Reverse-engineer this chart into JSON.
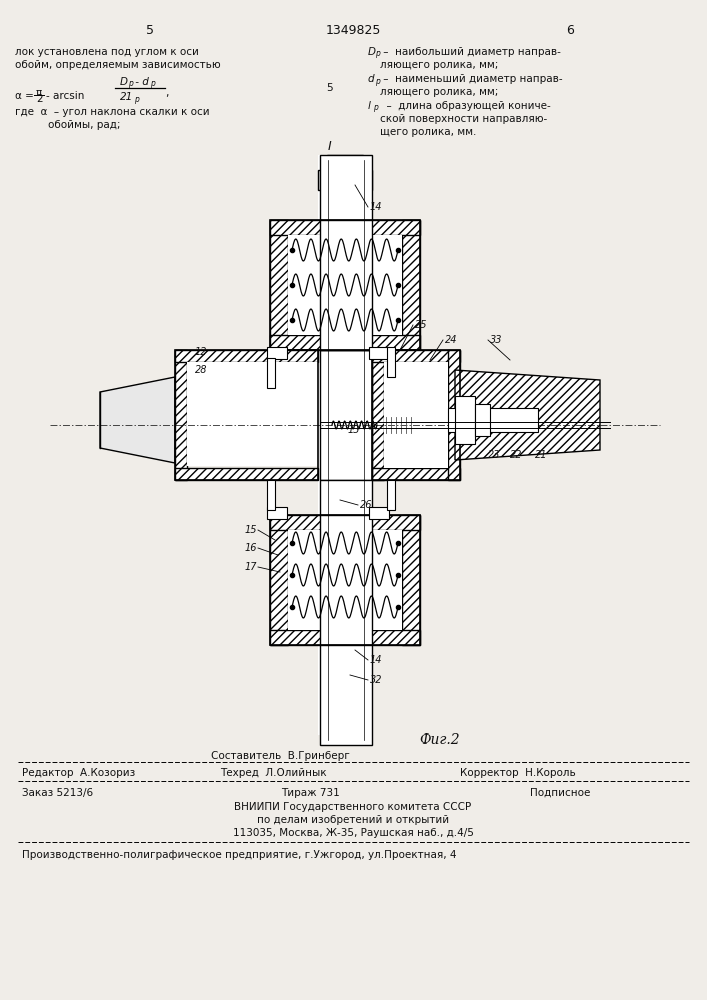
{
  "page_bg": "#f0ede8",
  "header": {
    "left_page_num": "5",
    "center_patent": "1349825",
    "right_page_num": "6"
  },
  "fig_caption": "Фиг.2",
  "footer_sostavitel": "Составитель  В.Гринберг",
  "footer_editor": "Редактор  А.Козориз",
  "footer_techr": "Техред  Л.Олийнык",
  "footer_corrector": "Корректор  Н.Король",
  "footer_order": "Заказ 5213/6",
  "footer_tirazh": "Тираж 731",
  "footer_podpisnoe": "Подписное",
  "footer_vnipi": "ВНИИПИ Государственного комитета СССР",
  "footer_po_delam": "по делам изобретений и открытий",
  "footer_address": "113035, Москва, Ж-35, Раушская наб., д.4/5",
  "footer_printer": "Производственно-полиграфическое предприятие, г.Ужгород, ул.Проектная, 4"
}
